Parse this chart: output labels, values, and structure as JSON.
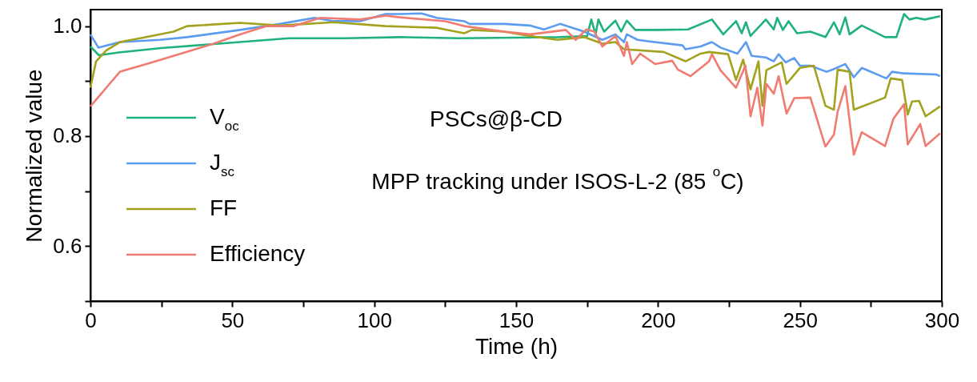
{
  "chart_data": {
    "type": "line",
    "xlabel": "Time (h)",
    "ylabel": "Normalized value",
    "annotations": [
      "PSCs@β-CD",
      "MPP tracking under ISOS-L-2 (85 $^{o}$C)"
    ],
    "xlim": [
      0,
      300
    ],
    "xticks": [
      0,
      {
        "value": 25,
        "label": null
      },
      50,
      {
        "value": 75,
        "label": null
      },
      100,
      {
        "value": 125,
        "label": null
      },
      150,
      {
        "value": 175,
        "label": null
      },
      200,
      {
        "value": 225,
        "label": null
      },
      250,
      {
        "value": 275,
        "label": null
      },
      300
    ],
    "ylim": [
      0.5,
      1.03
    ],
    "yticks": [
      {
        "value": 0.5,
        "label": null
      },
      0.6,
      {
        "value": 0.7,
        "label": null
      },
      0.8,
      {
        "value": 0.9,
        "label": null
      },
      {
        "value": 1,
        "label": "1.0"
      }
    ],
    "grid": false,
    "legend": "left",
    "series": [
      {
        "name": "V$_{oc}$",
        "color": "#1fb27c",
        "x": [
          0,
          3,
          10,
          25,
          52.7,
          70,
          90,
          109,
          130,
          150,
          165,
          175,
          176.5,
          178,
          179,
          181,
          185,
          187,
          189,
          192,
          200,
          210.6,
          219,
          223,
          227.5,
          229.5,
          231,
          232.6,
          238,
          240.8,
          242,
          244,
          246,
          249,
          253.7,
          259,
          262,
          264,
          266,
          267.5,
          271.8,
          280,
          284,
          286.7,
          288.6,
          291,
          294,
          299.4
        ],
        "values": [
          0.963,
          0.947,
          0.952,
          0.96,
          0.971,
          0.978,
          0.978,
          0.98,
          0.978,
          0.979,
          0.98,
          0.982,
          1.012,
          0.985,
          1.012,
          0.99,
          1.01,
          0.99,
          1.01,
          0.993,
          0.993,
          0.994,
          1.012,
          0.985,
          1.009,
          0.987,
          1.007,
          0.982,
          1.012,
          0.994,
          1.015,
          0.993,
          1.009,
          0.987,
          0.99,
          0.98,
          1.007,
          0.985,
          1.016,
          0.985,
          1.001,
          0.98,
          0.98,
          1.022,
          1.012,
          1.015,
          1.012,
          1.018
        ]
      },
      {
        "name": "J$_{sc}$",
        "color": "#5c9cf0",
        "x": [
          0,
          2.8,
          10.4,
          24.5,
          34,
          52.7,
          66.8,
          79,
          85.7,
          95,
          104,
          109,
          116.7,
          122,
          131.7,
          133.6,
          145.8,
          155,
          159.8,
          165.5,
          174,
          180.4,
          185,
          188,
          189,
          192.8,
          197,
          208.6,
          209.7,
          215,
          219,
          222,
          228,
          231,
          233,
          238,
          240.8,
          242.5,
          245,
          248,
          250,
          253.7,
          259.4,
          262,
          266,
          269,
          271.8,
          280.5,
          282.5,
          286.7,
          298,
          299.4
        ],
        "values": [
          0.985,
          0.961,
          0.971,
          0.975,
          0.98,
          0.993,
          1.004,
          1.015,
          1.009,
          1.009,
          1.022,
          1.022,
          1.023,
          1.015,
          1.009,
          1.004,
          1.004,
          1.001,
          0.994,
          1.004,
          0.99,
          0.975,
          0.985,
          0.971,
          0.985,
          0.975,
          0.972,
          0.965,
          0.958,
          0.963,
          0.971,
          0.961,
          0.95,
          0.971,
          0.946,
          0.943,
          0.936,
          0.949,
          0.934,
          0.942,
          0.928,
          0.928,
          0.917,
          0.922,
          0.931,
          0.907,
          0.924,
          0.905,
          0.917,
          0.914,
          0.912,
          0.909
        ]
      },
      {
        "name": "FF",
        "color": "#a3a21e",
        "x": [
          0,
          2,
          5.6,
          10.4,
          19.7,
          29.3,
          34,
          52.7,
          66.8,
          85.7,
          104,
          122,
          131.7,
          134.5,
          145.8,
          155,
          164.6,
          174,
          180.4,
          185,
          188,
          202,
          209.7,
          215,
          218,
          224.7,
          227.5,
          230,
          232.6,
          235.4,
          236.8,
          238.2,
          243.6,
          245.3,
          250,
          254.9,
          259,
          262,
          263.3,
          267.5,
          269,
          280,
          282,
          286,
          288,
          289.5,
          292,
          294.3,
          299.4
        ],
        "values": [
          0.888,
          0.936,
          0.956,
          0.971,
          0.98,
          0.99,
          1.0,
          1.006,
          1.001,
          1.007,
          1.0,
          0.997,
          0.987,
          0.993,
          0.99,
          0.982,
          0.975,
          0.98,
          0.968,
          0.971,
          0.958,
          0.953,
          0.936,
          0.95,
          0.953,
          0.949,
          0.902,
          0.939,
          0.885,
          0.936,
          0.855,
          0.92,
          0.934,
          0.895,
          0.924,
          0.928,
          0.855,
          0.848,
          0.921,
          0.917,
          0.848,
          0.87,
          0.905,
          0.902,
          0.839,
          0.863,
          0.864,
          0.836,
          0.854
        ]
      },
      {
        "name": "Efficiency",
        "color": "#f07b70",
        "x": [
          0,
          5.6,
          10.4,
          19.7,
          29.3,
          43.4,
          52.7,
          62,
          71.6,
          81,
          95,
          104,
          109,
          125,
          131.7,
          145.8,
          155,
          167.5,
          171,
          174.8,
          177.6,
          180.4,
          185,
          188,
          189,
          190.9,
          193.7,
          199,
          205,
          207,
          211.5,
          218,
          219,
          222,
          227.5,
          230.8,
          232.6,
          235,
          236.8,
          238.2,
          240.8,
          242.5,
          245.3,
          248,
          253.7,
          259,
          262,
          263.3,
          266,
          269,
          271.8,
          280,
          283,
          286.7,
          288,
          292.4,
          294.3,
          299.4
        ],
        "values": [
          0.854,
          0.888,
          0.917,
          0.931,
          0.946,
          0.968,
          0.985,
          1.0,
          1.0,
          1.015,
          1.012,
          1.019,
          1.016,
          1.009,
          1.0,
          0.99,
          0.985,
          0.993,
          0.975,
          0.994,
          0.99,
          0.963,
          0.982,
          0.946,
          0.971,
          0.931,
          0.95,
          0.931,
          0.937,
          0.921,
          0.909,
          0.936,
          0.949,
          0.92,
          0.888,
          0.928,
          0.836,
          0.888,
          0.819,
          0.895,
          0.877,
          0.909,
          0.841,
          0.869,
          0.87,
          0.781,
          0.803,
          0.844,
          0.891,
          0.766,
          0.807,
          0.782,
          0.832,
          0.858,
          0.785,
          0.822,
          0.782,
          0.805
        ]
      }
    ]
  }
}
